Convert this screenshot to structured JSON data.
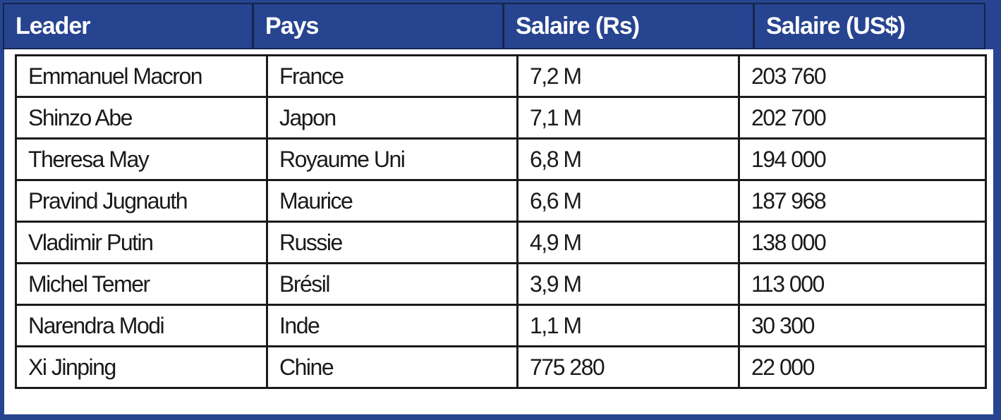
{
  "table": {
    "headers": [
      "Leader",
      "Pays",
      "Salaire (Rs)",
      "Salaire (US$)"
    ],
    "rows": [
      [
        "Emmanuel Macron",
        "France",
        "7,2 M",
        "203 760"
      ],
      [
        "Shinzo Abe",
        "Japon",
        "7,1 M",
        "202 700"
      ],
      [
        "Theresa May",
        "Royaume Uni",
        "6,8 M",
        "194 000"
      ],
      [
        "Pravind Jugnauth",
        "Maurice",
        "6,6 M",
        "187 968"
      ],
      [
        "Vladimir Putin",
        "Russie",
        "4,9 M",
        "138 000"
      ],
      [
        "Michel Temer",
        "Brésil",
        "3,9 M",
        "113 000"
      ],
      [
        "Narendra Modi",
        "Inde",
        "1,1 M",
        "30 300"
      ],
      [
        "Xi Jinping",
        "Chine",
        "775 280",
        "22 000"
      ]
    ]
  },
  "colors": {
    "header_bg": "#26448f",
    "header_text": "#ffffff",
    "grid": "#1a1a1a"
  }
}
